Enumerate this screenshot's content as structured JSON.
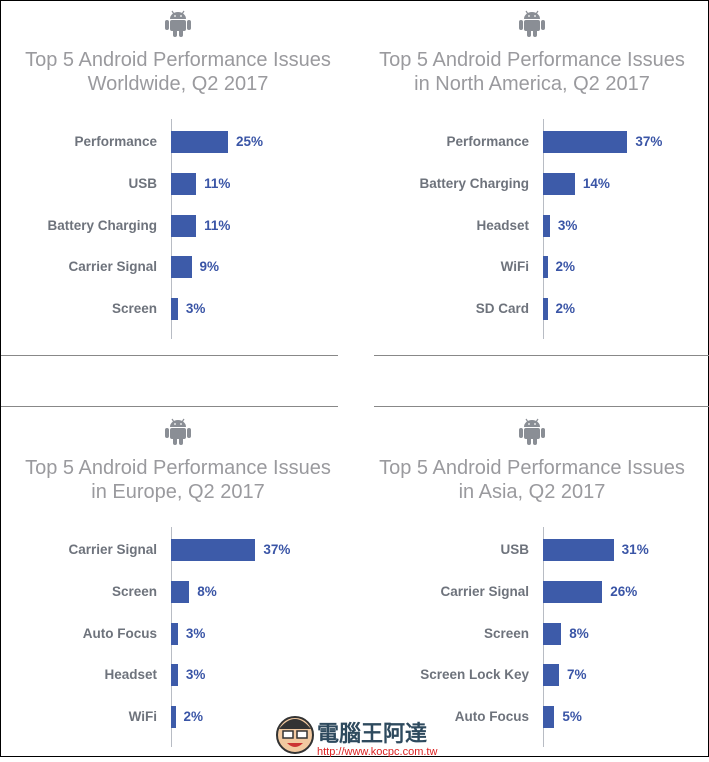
{
  "colors": {
    "bar": "#3d5ba9",
    "value": "#3a55a6",
    "label": "#6e737c",
    "title": "#9a9a9e",
    "icon": "#8a8e95"
  },
  "watermark": {
    "name": "電腦王阿達",
    "url": "http://www.kocpc.com.tw"
  },
  "chart_data": [
    {
      "type": "bar",
      "orientation": "horizontal",
      "title_line1": "Top 5 Android Performance Issues",
      "title_line2": "Worldwide, Q2 2017",
      "categories": [
        "Performance",
        "USB",
        "Battery Charging",
        "Carrier Signal",
        "Screen"
      ],
      "values": [
        25,
        11,
        11,
        9,
        3
      ],
      "labels": [
        "25%",
        "11%",
        "11%",
        "9%",
        "3%"
      ],
      "unit": "%"
    },
    {
      "type": "bar",
      "orientation": "horizontal",
      "title_line1": "Top 5 Android Performance Issues",
      "title_line2": "in North America, Q2 2017",
      "categories": [
        "Performance",
        "Battery Charging",
        "Headset",
        "WiFi",
        "SD Card"
      ],
      "values": [
        37,
        14,
        3,
        2,
        2
      ],
      "labels": [
        "37%",
        "14%",
        "3%",
        "2%",
        "2%"
      ],
      "unit": "%"
    },
    {
      "type": "bar",
      "orientation": "horizontal",
      "title_line1": "Top 5 Android Performance Issues",
      "title_line2": "in Europe, Q2 2017",
      "categories": [
        "Carrier Signal",
        "Screen",
        "Auto Focus",
        "Headset",
        "WiFi"
      ],
      "values": [
        37,
        8,
        3,
        3,
        2
      ],
      "labels": [
        "37%",
        "8%",
        "3%",
        "3%",
        "2%"
      ],
      "unit": "%"
    },
    {
      "type": "bar",
      "orientation": "horizontal",
      "title_line1": "Top 5 Android Performance Issues",
      "title_line2": "in Asia, Q2 2017",
      "categories": [
        "USB",
        "Carrier Signal",
        "Screen",
        "Screen Lock Key",
        "Auto Focus"
      ],
      "values": [
        31,
        26,
        8,
        7,
        5
      ],
      "labels": [
        "31%",
        "26%",
        "8%",
        "7%",
        "5%"
      ],
      "unit": "%"
    }
  ]
}
